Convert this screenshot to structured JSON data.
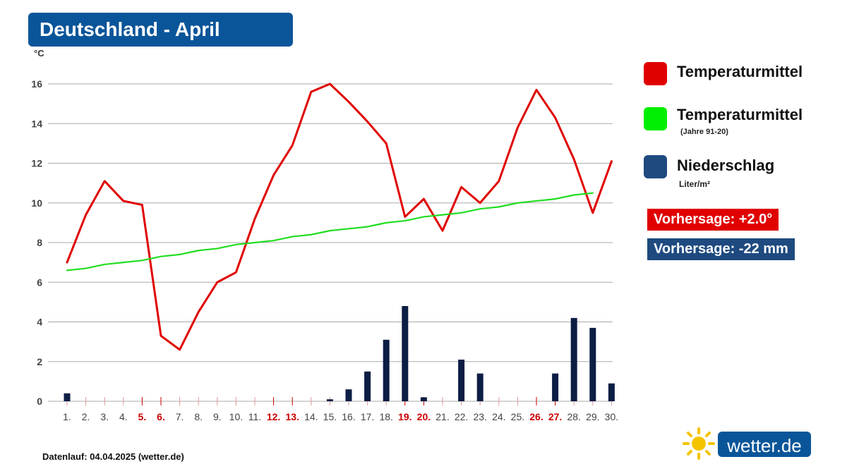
{
  "header": {
    "title": "Deutschland - April"
  },
  "unit_label": "°C",
  "legend": {
    "items": [
      {
        "label": "Temperaturmittel",
        "sub": "",
        "color": "#e00000"
      },
      {
        "label": "Temperaturmittel",
        "sub": "(Jahre 91-20)",
        "color": "#00ee00"
      },
      {
        "label": "Niederschlag",
        "sub": "Liter/m²",
        "color": "#1e4a80"
      }
    ]
  },
  "forecasts": {
    "temp": "Vorhersage: +2.0°",
    "precip": "Vorhersage: -22 mm"
  },
  "footer": "Datenlauf: 04.04.2025 (wetter.de)",
  "logo": {
    "text": "wetter.de"
  },
  "colors": {
    "title_bg": "#0a5599",
    "temp": "#e00000",
    "normal": "#22dd22",
    "precip": "#0d1e44",
    "weekend": "#cc0000",
    "grid": "#aaaaaa"
  },
  "chart_data": {
    "type": "line",
    "categories": [
      "1.",
      "2.",
      "3.",
      "4.",
      "5.",
      "6.",
      "7.",
      "8.",
      "9.",
      "10.",
      "11.",
      "12.",
      "13.",
      "14.",
      "15.",
      "16.",
      "17.",
      "18.",
      "19.",
      "20.",
      "21.",
      "22.",
      "23.",
      "24.",
      "25.",
      "26.",
      "27.",
      "28.",
      "29.",
      "30."
    ],
    "weekend_days": [
      "5.",
      "6.",
      "12.",
      "13.",
      "19.",
      "20.",
      "26.",
      "27."
    ],
    "y_ticks": [
      0,
      2,
      4,
      6,
      8,
      10,
      12,
      14,
      16
    ],
    "ylim": [
      0,
      16
    ],
    "ylabel": "°C",
    "grid": true,
    "legend_position": "right",
    "series": [
      {
        "name": "Temperaturmittel",
        "kind": "line",
        "values": [
          7.0,
          9.4,
          11.1,
          10.1,
          9.9,
          3.3,
          2.6,
          4.5,
          6.0,
          6.5,
          9.2,
          11.4,
          12.9,
          15.6,
          16.0,
          15.1,
          14.1,
          13.0,
          9.3,
          10.2,
          8.6,
          10.8,
          10.0,
          11.1,
          13.8,
          15.7,
          14.3,
          12.2,
          9.5,
          12.1
        ]
      },
      {
        "name": "Temperaturmittel (Jahre 91-20)",
        "kind": "line",
        "values": [
          6.6,
          6.7,
          6.9,
          7.0,
          7.1,
          7.3,
          7.4,
          7.6,
          7.7,
          7.9,
          8.0,
          8.1,
          8.3,
          8.4,
          8.6,
          8.7,
          8.8,
          9.0,
          9.1,
          9.3,
          9.4,
          9.5,
          9.7,
          9.8,
          10.0,
          10.1,
          10.2,
          10.4,
          10.5,
          null
        ]
      },
      {
        "name": "Niederschlag",
        "kind": "bar",
        "values": [
          0.4,
          0.0,
          0.0,
          0.0,
          0.0,
          0.0,
          0.0,
          0.0,
          0.0,
          0.0,
          0.0,
          0.0,
          0.0,
          0.0,
          0.1,
          0.6,
          1.5,
          3.1,
          4.8,
          0.2,
          0.0,
          2.1,
          1.4,
          0.0,
          0.0,
          0.0,
          1.4,
          4.2,
          3.7,
          0.9
        ]
      }
    ]
  }
}
